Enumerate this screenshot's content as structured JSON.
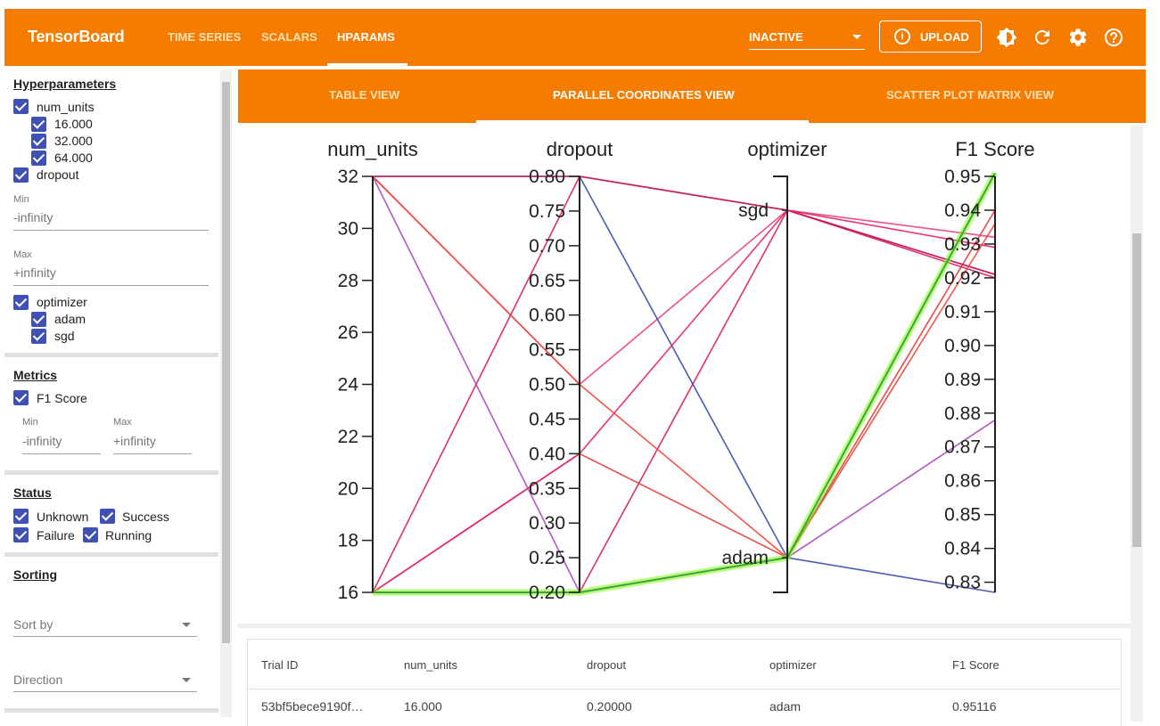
{
  "header": {
    "brand": "TensorBoard",
    "tabs": [
      "TIME SERIES",
      "SCALARS",
      "HPARAMS"
    ],
    "active_tab": "HPARAMS",
    "reload_mode": "INACTIVE",
    "upload_label": "UPLOAD",
    "icons": [
      "brightness-icon",
      "refresh-icon",
      "settings-icon",
      "help-icon"
    ]
  },
  "subtabs": [
    "TABLE VIEW",
    "PARALLEL COORDINATES VIEW",
    "SCATTER PLOT MATRIX VIEW"
  ],
  "active_subtab": "PARALLEL COORDINATES VIEW",
  "sidebar": {
    "hyperparameters_title": "Hyperparameters",
    "num_units_label": "num_units",
    "num_units_values": [
      "16.000",
      "32.000",
      "64.000"
    ],
    "dropout_label": "dropout",
    "dropout_min_caption": "Min",
    "dropout_min_value": "-infinity",
    "dropout_max_caption": "Max",
    "dropout_max_value": "+infinity",
    "optimizer_label": "optimizer",
    "optimizer_values": [
      "adam",
      "sgd"
    ],
    "metrics_title": "Metrics",
    "metric_label": "F1 Score",
    "metric_min_caption": "Min",
    "metric_min_value": "-infinity",
    "metric_max_caption": "Max",
    "metric_max_value": "+infinity",
    "status_title": "Status",
    "status_items": [
      "Unknown",
      "Success",
      "Failure",
      "Running"
    ],
    "sorting_title": "Sorting",
    "sort_by_placeholder": "Sort by",
    "direction_placeholder": "Direction"
  },
  "chart_data": {
    "type": "parallel_coordinates",
    "axes": [
      {
        "name": "num_units",
        "type": "numeric",
        "range": [
          16,
          32
        ],
        "ticks": [
          "16",
          "18",
          "20",
          "22",
          "24",
          "26",
          "28",
          "30",
          "32"
        ]
      },
      {
        "name": "dropout",
        "type": "numeric",
        "range": [
          0.2,
          0.8
        ],
        "ticks": [
          "0.20",
          "0.25",
          "0.30",
          "0.35",
          "0.40",
          "0.45",
          "0.50",
          "0.55",
          "0.60",
          "0.65",
          "0.70",
          "0.75",
          "0.80"
        ]
      },
      {
        "name": "optimizer",
        "type": "categorical",
        "categories": [
          "sgd",
          "adam"
        ]
      },
      {
        "name": "F1 Score",
        "type": "numeric",
        "range": [
          0.827,
          0.95
        ],
        "ticks": [
          "0.83",
          "0.84",
          "0.85",
          "0.86",
          "0.87",
          "0.88",
          "0.89",
          "0.90",
          "0.91",
          "0.92",
          "0.93",
          "0.94",
          "0.95"
        ]
      }
    ],
    "trials": [
      {
        "num_units": 16,
        "dropout": 0.2,
        "optimizer": "adam",
        "f1": 0.951,
        "color": "#4caf50",
        "highlight": true
      },
      {
        "num_units": 16,
        "dropout": 0.2,
        "optimizer": "sgd",
        "f1": 0.921,
        "color": "#d81b60"
      },
      {
        "num_units": 16,
        "dropout": 0.4,
        "optimizer": "adam",
        "f1": 0.94,
        "color": "#e53935"
      },
      {
        "num_units": 16,
        "dropout": 0.8,
        "optimizer": "sgd",
        "f1": 0.92,
        "color": "#d81b60"
      },
      {
        "num_units": 32,
        "dropout": 0.2,
        "optimizer": "adam",
        "f1": 0.878,
        "color": "#ab47bc"
      },
      {
        "num_units": 32,
        "dropout": 0.5,
        "optimizer": "sgd",
        "f1": 0.932,
        "color": "#ec407a"
      },
      {
        "num_units": 32,
        "dropout": 0.8,
        "optimizer": "adam",
        "f1": 0.827,
        "color": "#3949ab"
      },
      {
        "num_units": 32,
        "dropout": 0.8,
        "optimizer": "sgd",
        "f1": 0.921,
        "color": "#c2185b"
      },
      {
        "num_units": 16,
        "dropout": 0.4,
        "optimizer": "sgd",
        "f1": 0.929,
        "color": "#e91e63"
      },
      {
        "num_units": 32,
        "dropout": 0.5,
        "optimizer": "adam",
        "f1": 0.936,
        "color": "#f44336"
      }
    ]
  },
  "table": {
    "columns": [
      "Trial ID",
      "num_units",
      "dropout",
      "optimizer",
      "F1 Score"
    ],
    "rows": [
      [
        "53bf5bece9190f…",
        "16.000",
        "0.20000",
        "adam",
        "0.95116"
      ]
    ]
  }
}
